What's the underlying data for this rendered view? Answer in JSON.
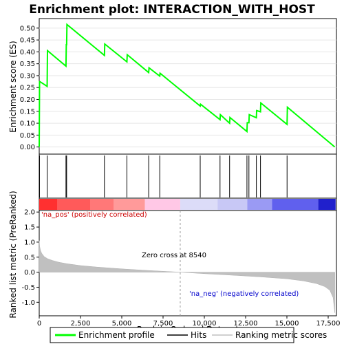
{
  "chart_data": {
    "type": "line",
    "title": "Enrichment plot: INTERACTION_WITH_HOST",
    "x_label": "Rank in Ordered Dataset",
    "xlim": [
      0,
      18000
    ],
    "x_ticks": [
      "0",
      "2,500",
      "5,000",
      "7,500",
      "10,000",
      "12,500",
      "15,000",
      "17,500"
    ],
    "top_panel": {
      "ylabel": "Enrichment score (ES)",
      "ylim": [
        -0.03,
        0.54
      ],
      "y_ticks": [
        "0.00",
        "0.05",
        "0.10",
        "0.15",
        "0.20",
        "0.25",
        "0.30",
        "0.35",
        "0.40",
        "0.45",
        "0.50"
      ],
      "series": [
        {
          "name": "Enrichment profile",
          "color": "#00ff00",
          "x": [
            0,
            20,
            40,
            480,
            500,
            1620,
            1640,
            1660,
            1680,
            3950,
            3970,
            5310,
            5330,
            6630,
            6650,
            7300,
            7320,
            9750,
            9770,
            10950,
            10970,
            11530,
            11550,
            12580,
            12600,
            12700,
            12720,
            13150,
            13170,
            13400,
            13420,
            15010,
            15030,
            17900
          ],
          "values": [
            0.0,
            0.275,
            0.275,
            0.255,
            0.405,
            0.34,
            0.43,
            0.43,
            0.515,
            0.385,
            0.433,
            0.358,
            0.388,
            0.313,
            0.333,
            0.298,
            0.31,
            0.172,
            0.18,
            0.115,
            0.136,
            0.1,
            0.124,
            0.065,
            0.102,
            0.102,
            0.136,
            0.123,
            0.153,
            0.148,
            0.185,
            0.095,
            0.167,
            0.0
          ]
        }
      ]
    },
    "hits": [
      20,
      480,
      1620,
      1660,
      3950,
      5310,
      6630,
      7300,
      9750,
      10950,
      11530,
      12580,
      12700,
      13150,
      13400,
      15010
    ],
    "bottom_panel": {
      "ylabel": "Ranked list metric (PreRanked)",
      "ylim": [
        -1.45,
        2.05
      ],
      "y_ticks": [
        "-1.0",
        "-0.5",
        "0.0",
        "0.5",
        "1.0",
        "1.5",
        "2.0"
      ],
      "series": [
        {
          "name": "Ranking metric scores",
          "color": "#c0c0c0",
          "x": [
            0,
            30,
            80,
            150,
            300,
            500,
            800,
            1200,
            1700,
            2500,
            3500,
            5000,
            6500,
            8540,
            10000,
            12000,
            13500,
            15000,
            16000,
            16800,
            17300,
            17600,
            17800,
            17900
          ],
          "values": [
            1.05,
            0.85,
            0.72,
            0.63,
            0.52,
            0.45,
            0.39,
            0.33,
            0.28,
            0.22,
            0.17,
            0.11,
            0.06,
            0.0,
            -0.05,
            -0.11,
            -0.16,
            -0.22,
            -0.29,
            -0.38,
            -0.48,
            -0.6,
            -0.85,
            -1.35
          ]
        }
      ],
      "zero_cross_label": "Zero cross at 8540",
      "zero_cross": 8540,
      "pos_label": "'na_pos' (positively correlated)",
      "neg_label": "'na_neg' (negatively correlated)"
    },
    "legend": {
      "position": "bottom",
      "items": [
        "Enrichment profile",
        "Hits",
        "Ranking metric scores"
      ]
    }
  }
}
